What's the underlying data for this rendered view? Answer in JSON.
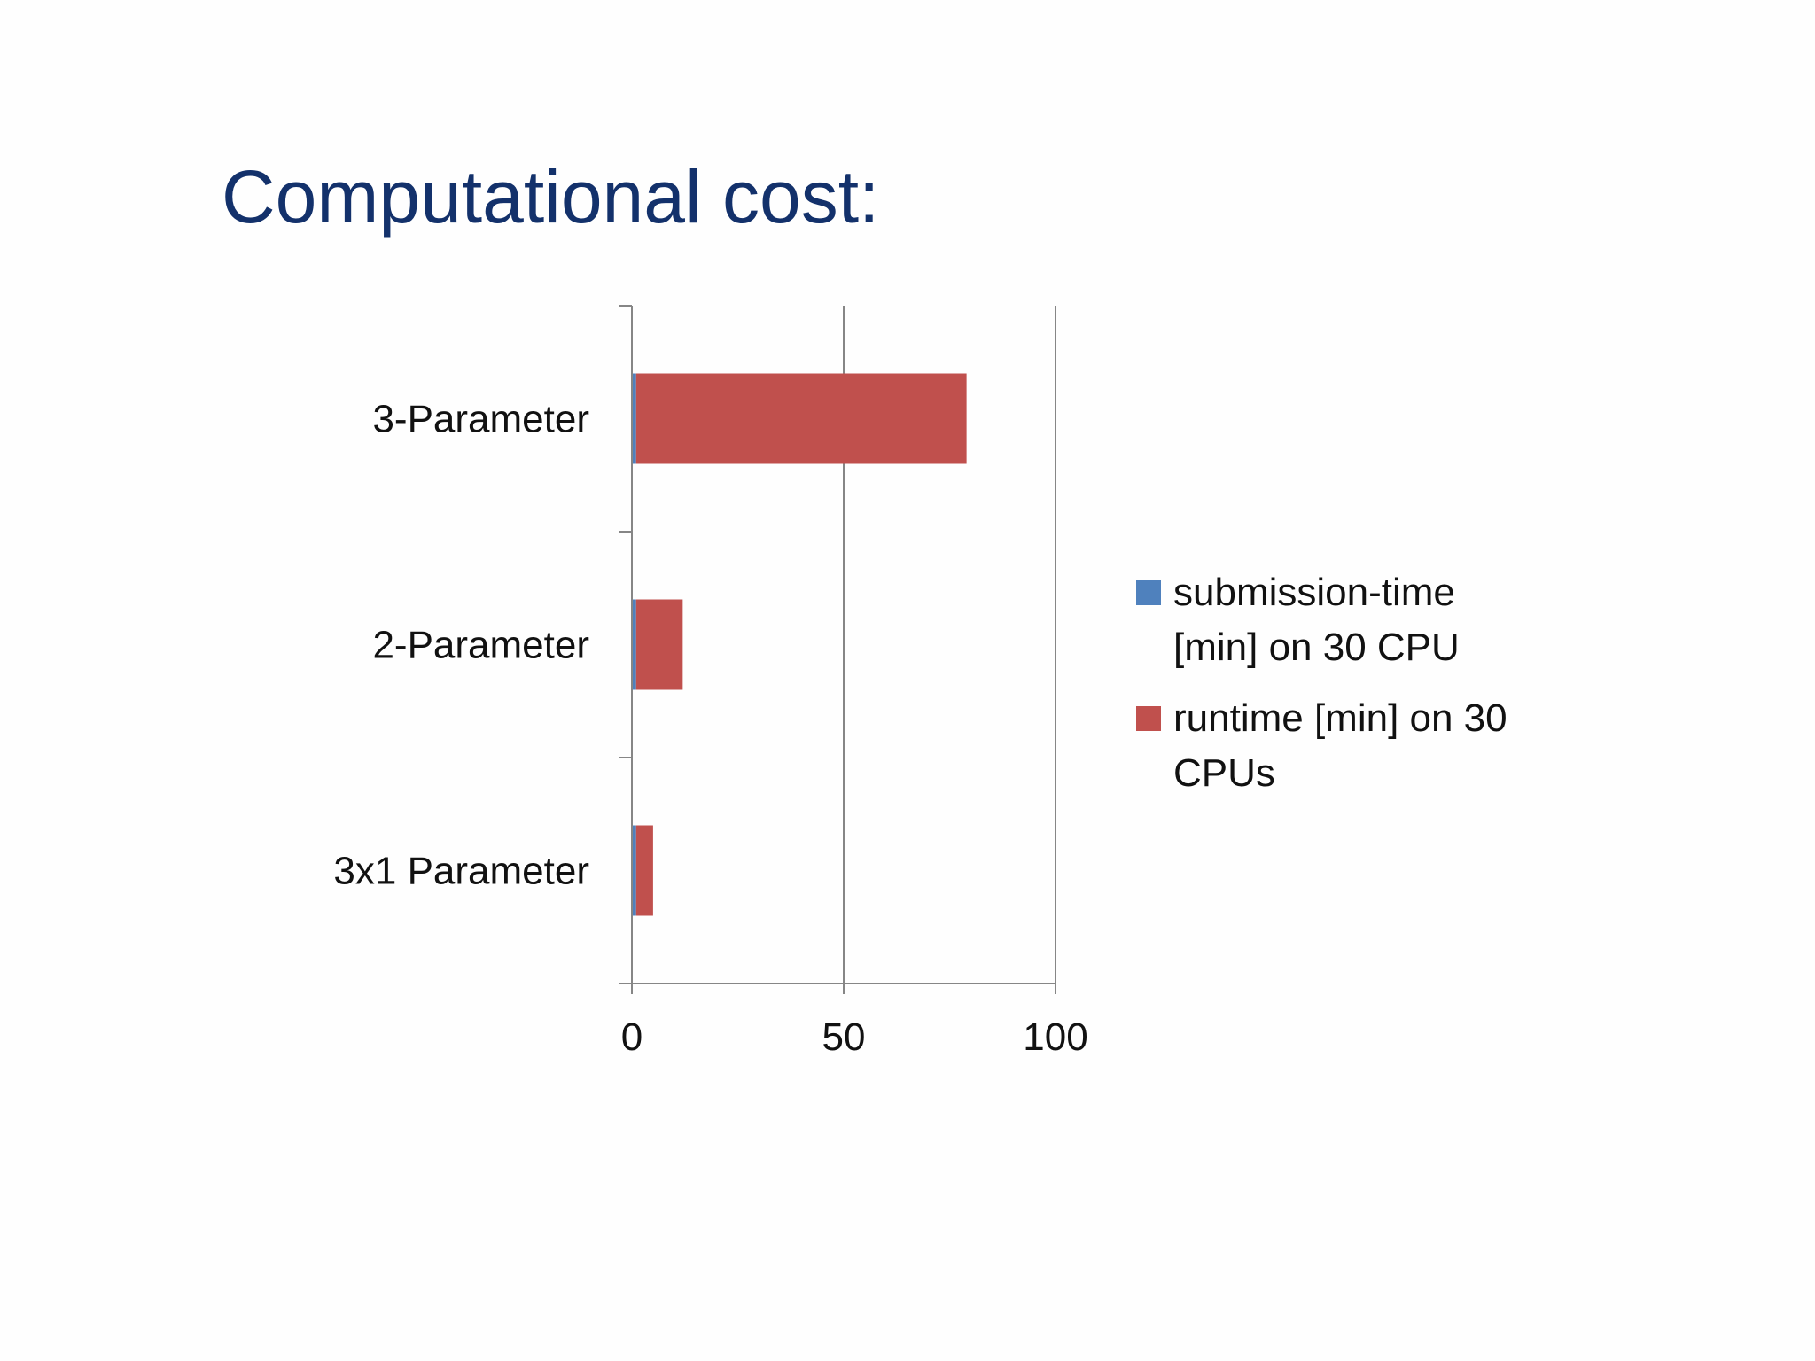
{
  "slide": {
    "title": "Computational cost:"
  },
  "colors": {
    "title": "#13316b",
    "submission": "#4f81bd",
    "runtime": "#c0504d",
    "axis": "#868686"
  },
  "chart_data": {
    "type": "bar",
    "orientation": "horizontal",
    "stacked": true,
    "categories": [
      "3-Parameter",
      "2-Parameter",
      "3x1 Parameter"
    ],
    "series": [
      {
        "name": "submission-time [min] on 30 CPU",
        "values": [
          1,
          1,
          1
        ]
      },
      {
        "name": "runtime [min] on 30 CPUs",
        "values": [
          78,
          11,
          4
        ]
      }
    ],
    "xlim": [
      0,
      100
    ],
    "xticks": [
      "0",
      "50",
      "100"
    ],
    "grid": true,
    "legend_position": "right"
  }
}
